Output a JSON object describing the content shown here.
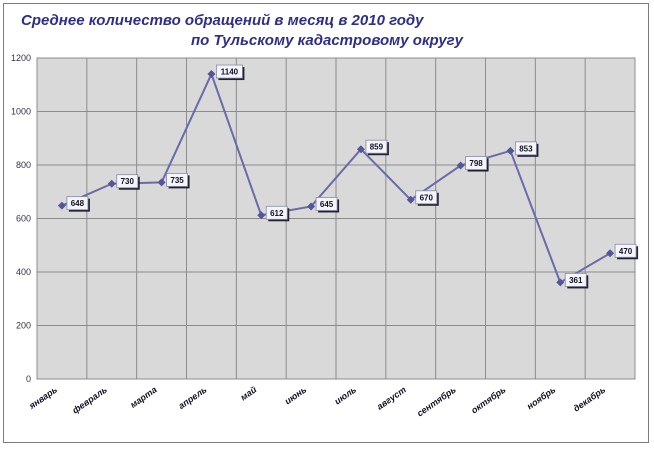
{
  "chart_data": {
    "type": "line",
    "title_line1": "Среднее количество обращений в месяц в 2010 году",
    "title_line2": "по Тульскому кадастровому округу",
    "xlabel": "",
    "ylabel": "",
    "categories": [
      "январь",
      "февраль",
      "марта",
      "апрель",
      "май",
      "июнь",
      "июль",
      "август",
      "сентябрь",
      "октябрь",
      "ноябрь",
      "декабрь"
    ],
    "series": [
      {
        "values": [
          648,
          730,
          735,
          1140,
          612,
          645,
          859,
          670,
          798,
          853,
          361,
          470
        ]
      }
    ],
    "data_labels": [
      "648",
      "730",
      "735",
      "1140",
      "612",
      "645",
      "859",
      "670",
      "798",
      "853",
      "361",
      "470"
    ],
    "y_ticks": [
      "0",
      "200",
      "400",
      "600",
      "800",
      "1000",
      "1200"
    ],
    "ylim": [
      0,
      1200
    ],
    "grid": true,
    "legend": "none",
    "colors": {
      "line": "#6a6aa8",
      "marker": "#55559a",
      "plot_background": "#d9d9d9",
      "grid": "#8c8c8c",
      "title": "#2e2e8a"
    }
  }
}
